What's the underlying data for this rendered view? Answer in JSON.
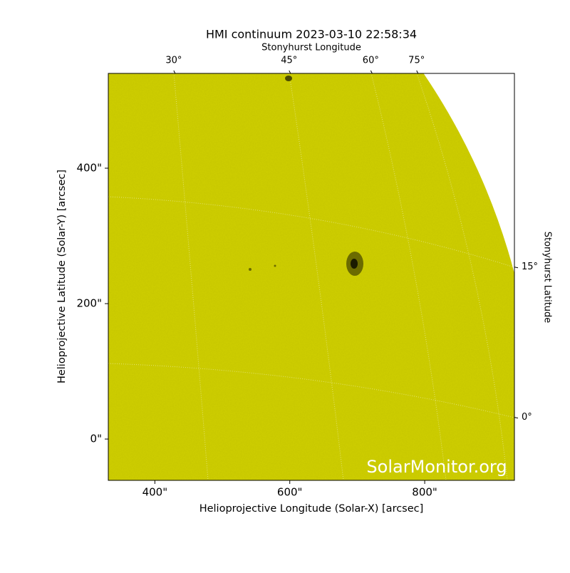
{
  "chart_data": {
    "type": "image",
    "title": "HMI continuum 2023-03-10 22:58:34",
    "xlabel": "Helioprojective Longitude (Solar-X) [arcsec]",
    "ylabel": "Helioprojective Latitude (Solar-Y) [arcsec]",
    "xlim": [
      331,
      933
    ],
    "ylim": [
      -61,
      540
    ],
    "xticks": [
      {
        "value": 400,
        "label": "400\""
      },
      {
        "value": 600,
        "label": "600\""
      },
      {
        "value": 800,
        "label": "800\""
      }
    ],
    "yticks": [
      {
        "value": 0,
        "label": "0\""
      },
      {
        "value": 200,
        "label": "200\""
      },
      {
        "value": 400,
        "label": "400\""
      }
    ],
    "top_axis": {
      "label": "Stonyhurst Longitude",
      "ticks": [
        {
          "value": 30,
          "label": "30°",
          "x": 428
        },
        {
          "value": 45,
          "label": "45°",
          "x": 599
        },
        {
          "value": 60,
          "label": "60°",
          "x": 720
        },
        {
          "value": 75,
          "label": "75°",
          "x": 788
        }
      ]
    },
    "right_axis": {
      "label": "Stonyhurst Latitude",
      "ticks": [
        {
          "value": 15,
          "label": "15°",
          "y": 254
        },
        {
          "value": 0,
          "label": "0°",
          "y": 32
        }
      ]
    },
    "watermark": "SolarMonitor.org",
    "color": "#cccc00"
  }
}
